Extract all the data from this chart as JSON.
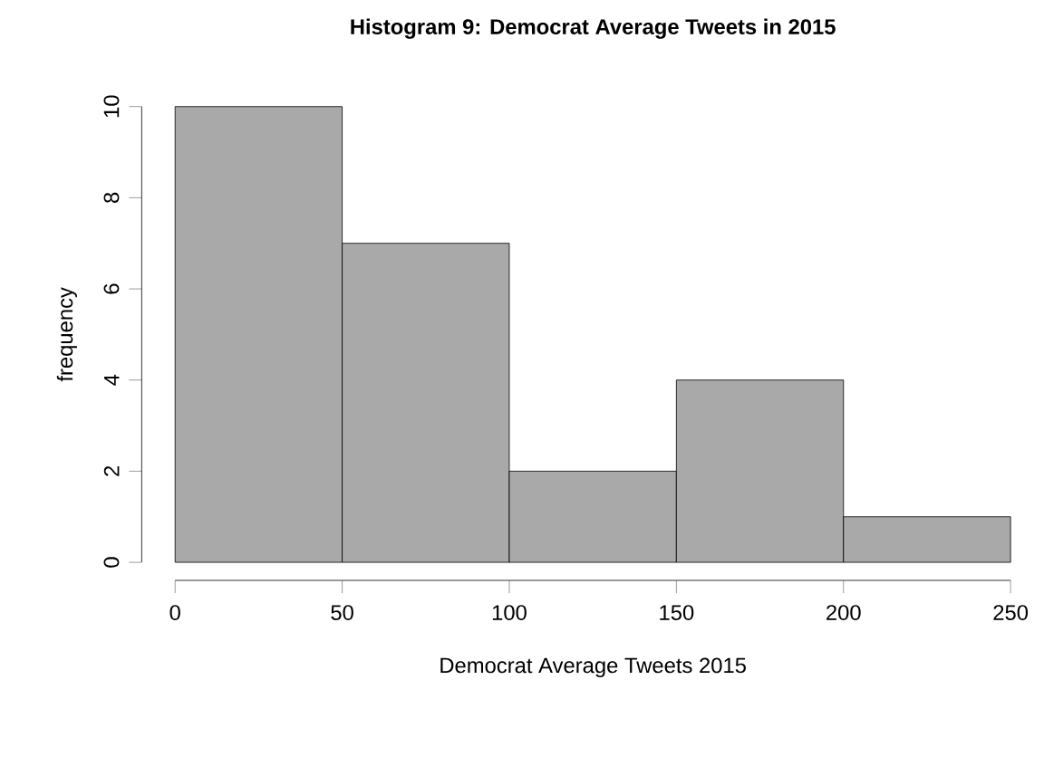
{
  "chart_data": {
    "type": "histogram",
    "title": "Histogram 9: Democrat Average Tweets in 2015",
    "xlabel": "Democrat Average Tweets 2015",
    "ylabel": "frequency",
    "bins": [
      0,
      50,
      100,
      150,
      200,
      250
    ],
    "values": [
      10,
      7,
      2,
      4,
      1
    ],
    "color": "#a9a9a9",
    "xlim": [
      0,
      250
    ],
    "ylim": [
      0,
      10
    ],
    "xticks": [
      0,
      50,
      100,
      150,
      200,
      250
    ],
    "yticks": [
      0,
      2,
      4,
      6,
      8,
      10
    ],
    "grid": false
  }
}
